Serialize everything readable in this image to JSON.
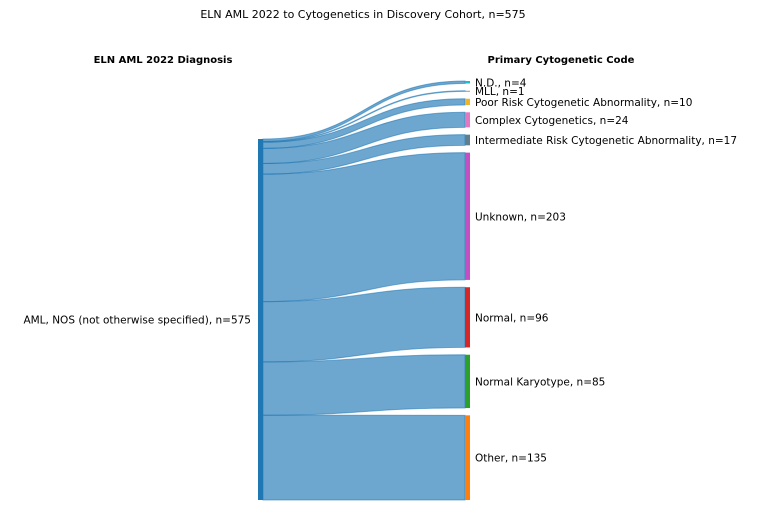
{
  "title": "ELN AML 2022 to Cytogenetics in Discovery Cohort, n=575",
  "left_header": "ELN AML 2022 Diagnosis",
  "right_header": "Primary Cytogenetic Code",
  "source": {
    "label": "AML, NOS (not otherwise specified), n=575",
    "color": "#1f77b4"
  },
  "link_color": "#1f77b4",
  "chart_data": {
    "type": "sankey",
    "source": {
      "name": "AML, NOS (not otherwise specified)",
      "value": 575
    },
    "targets": [
      {
        "name": "N.D.",
        "value": 4,
        "label": "N.D., n=4",
        "color": "#17becf"
      },
      {
        "name": "MLL",
        "value": 1,
        "label": "MLL, n=1",
        "color": "#7f7f7f"
      },
      {
        "name": "Poor Risk Cytogenetic Abnormality",
        "value": 10,
        "label": "Poor Risk Cytogenetic Abnormality, n=10",
        "color": "#f0b429"
      },
      {
        "name": "Complex Cytogenetics",
        "value": 24,
        "label": "Complex Cytogenetics, n=24",
        "color": "#e377c2"
      },
      {
        "name": "Intermediate Risk Cytogenetic Abnormality",
        "value": 17,
        "label": "Intermediate Risk Cytogenetic Abnormality, n=17",
        "color": "#5f7f8f"
      },
      {
        "name": "Unknown",
        "value": 203,
        "label": "Unknown, n=203",
        "color": "#c44fc4"
      },
      {
        "name": "Normal",
        "value": 96,
        "label": "Normal, n=96",
        "color": "#d62728"
      },
      {
        "name": "Normal Karyotype",
        "value": 85,
        "label": "Normal Karyotype, n=85",
        "color": "#2ca02c"
      },
      {
        "name": "Other",
        "value": 135,
        "label": "Other, n=135",
        "color": "#ff7f0e"
      }
    ]
  }
}
